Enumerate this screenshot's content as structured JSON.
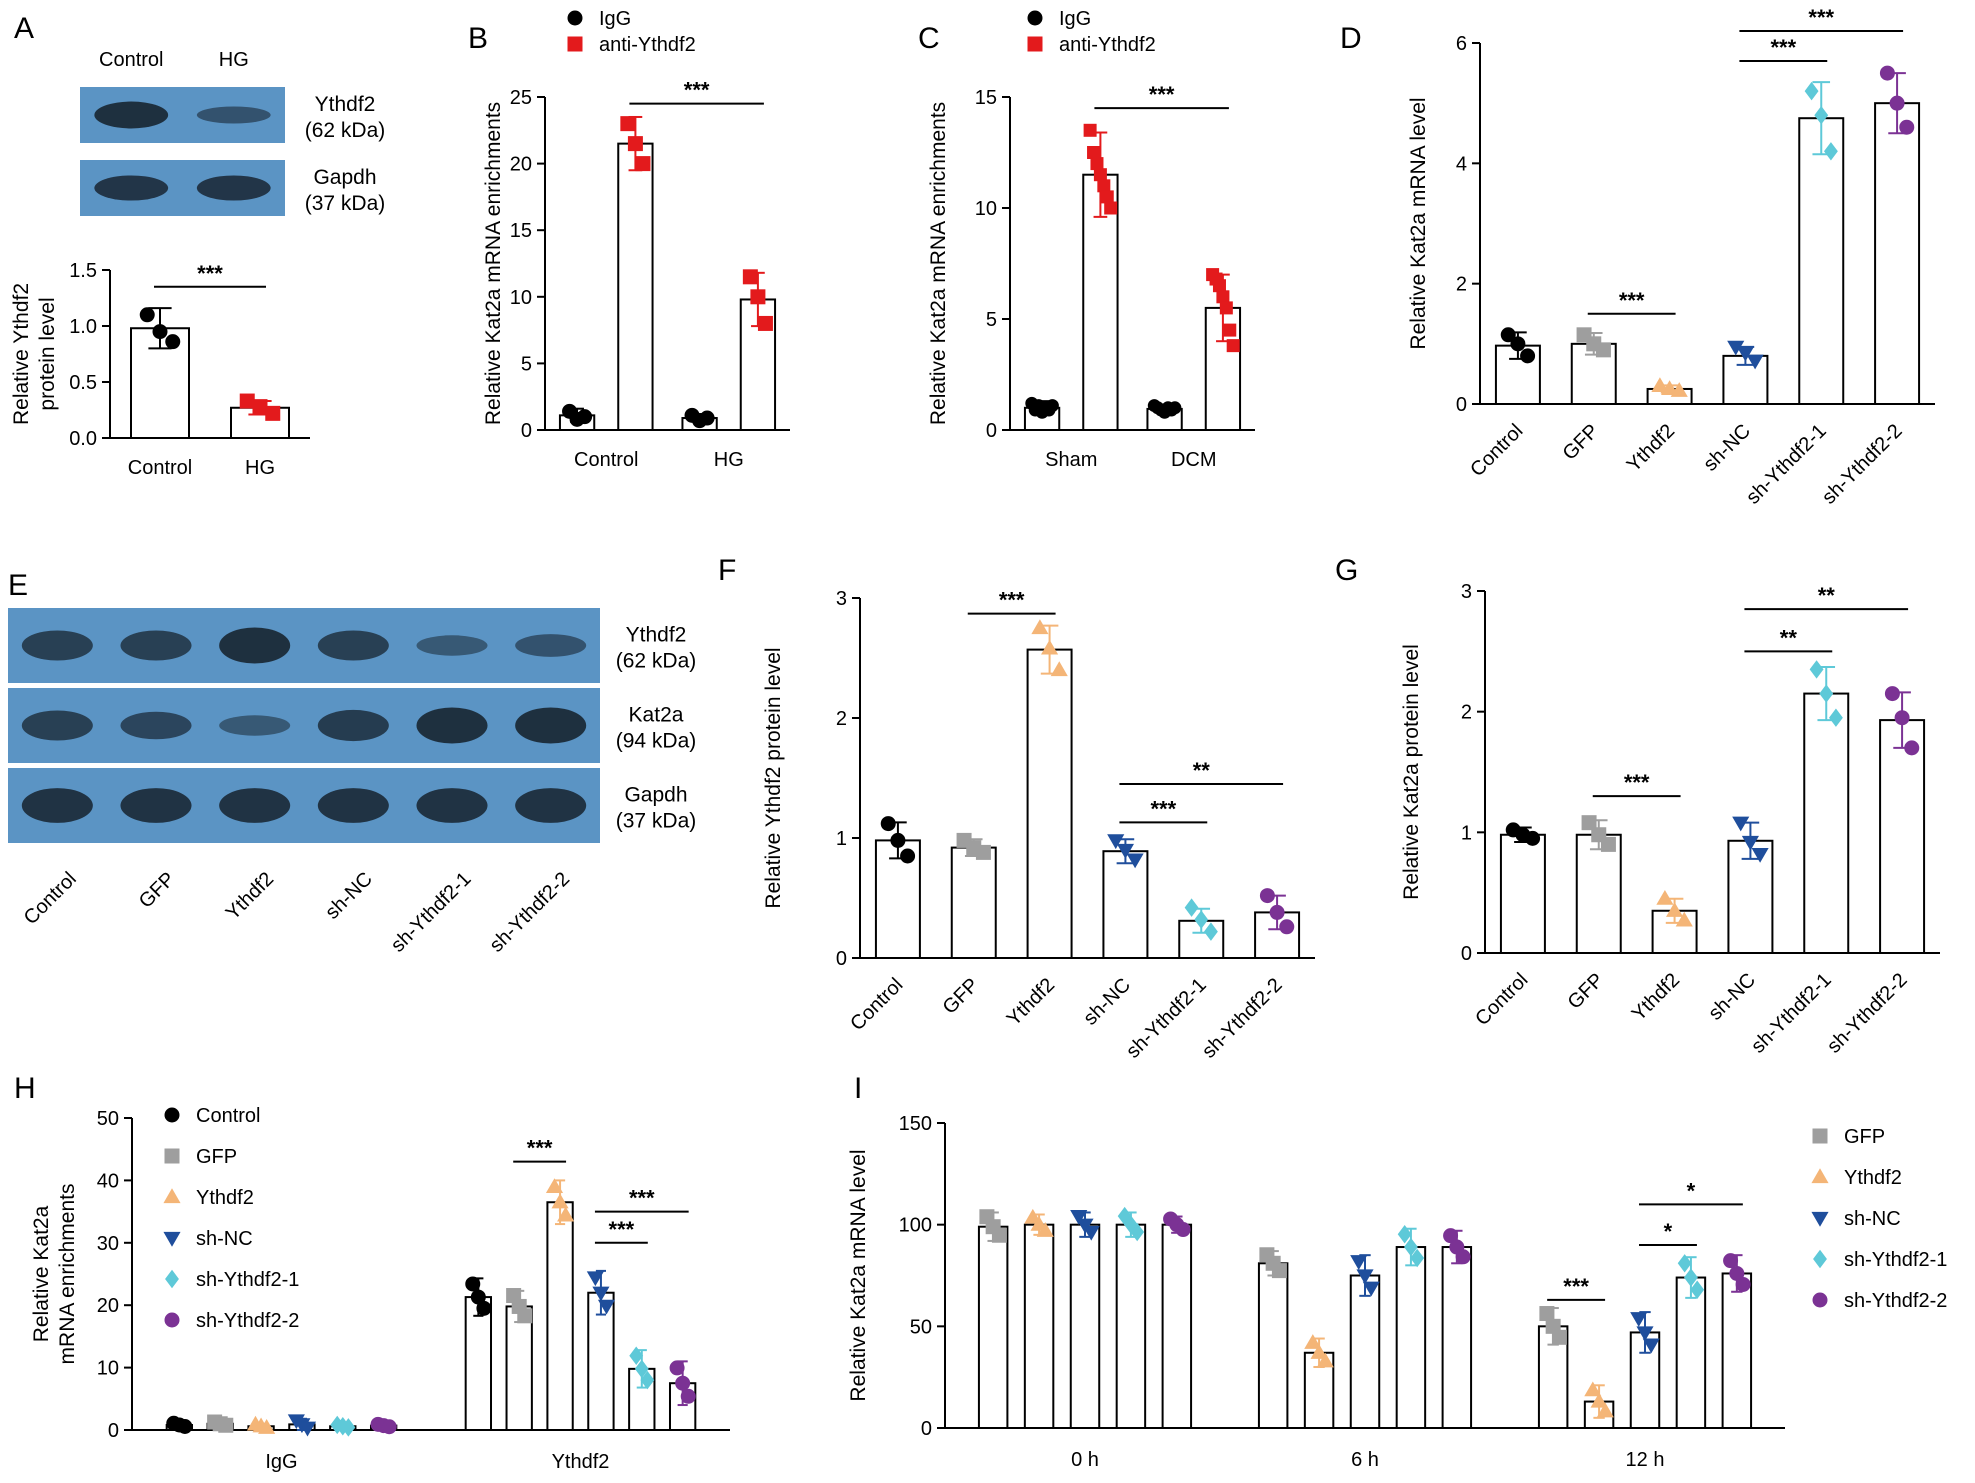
{
  "colors": {
    "IgG": "#000000",
    "anti": "#e31a1c",
    "Control": "#000000",
    "GFP": "#9e9e9e",
    "Ythdf2": "#f4b577",
    "sh-NC": "#1f4e9c",
    "sh-Ythdf2-1": "#5ec9d8",
    "sh-Ythdf2-2": "#7b3294",
    "blot_bg": "#5b94c4",
    "blot_band": "#1b2a38"
  },
  "chart_data": [
    {
      "id": "A",
      "type": "bar",
      "panel_letter": "A",
      "blot": {
        "lanes": [
          "Control",
          "HG"
        ],
        "rows": [
          {
            "name": "Ythdf2",
            "size": "(62 kDa)",
            "band_intensity": [
              1.0,
              0.45
            ]
          },
          {
            "name": "Gapdh",
            "size": "(37 kDa)",
            "band_intensity": [
              0.9,
              0.9
            ]
          }
        ]
      },
      "ylabel_lines": [
        "Relative Ythdf2",
        "protein level"
      ],
      "ylim": [
        0,
        1.5
      ],
      "yticks": [
        "0.0",
        "0.5",
        "1.0",
        "1.5"
      ],
      "categories": [
        "Control",
        "HG"
      ],
      "bars": [
        {
          "category": "Control",
          "value": 0.98,
          "err": 0.18,
          "points": [
            1.1,
            0.95,
            0.86
          ],
          "color": "#ffffff",
          "marker": "circle",
          "marker_color": "#000000"
        },
        {
          "category": "HG",
          "value": 0.27,
          "err": 0.06,
          "points": [
            0.33,
            0.28,
            0.22
          ],
          "color": "#ffffff",
          "marker": "square",
          "marker_color": "#e31a1c"
        }
      ],
      "sig": [
        {
          "label": "***",
          "from": 0,
          "to": 1,
          "y": 1.35
        }
      ]
    },
    {
      "id": "B",
      "type": "bar",
      "panel_letter": "B",
      "legend": [
        {
          "label": "IgG",
          "marker": "circle",
          "color": "#000000"
        },
        {
          "label": "anti-Ythdf2",
          "marker": "square",
          "color": "#e31a1c"
        }
      ],
      "ylabel_lines": [
        "Relative Kat2a mRNA enrichments"
      ],
      "ylim": [
        0,
        25
      ],
      "yticks": [
        "0",
        "5",
        "10",
        "15",
        "20",
        "25"
      ],
      "groups": [
        "Control",
        "HG"
      ],
      "bars": [
        {
          "group": 0,
          "series": "IgG",
          "value": 1.1,
          "err": 0.5,
          "points": [
            1.4,
            0.8,
            1.0
          ],
          "marker": "circle",
          "marker_color": "#000000"
        },
        {
          "group": 0,
          "series": "anti-Ythdf2",
          "value": 21.5,
          "err": 2.0,
          "points": [
            23.0,
            21.5,
            20.0
          ],
          "marker": "square",
          "marker_color": "#e31a1c"
        },
        {
          "group": 1,
          "series": "IgG",
          "value": 0.9,
          "err": 0.3,
          "points": [
            1.1,
            0.7,
            0.9
          ],
          "marker": "circle",
          "marker_color": "#000000"
        },
        {
          "group": 1,
          "series": "anti-Ythdf2",
          "value": 9.8,
          "err": 2.0,
          "points": [
            11.5,
            10.0,
            8.0
          ],
          "marker": "square",
          "marker_color": "#e31a1c"
        }
      ],
      "sig": [
        {
          "label": "***",
          "from_bar": 1,
          "to_bar": 3,
          "y": 24.5
        }
      ]
    },
    {
      "id": "C",
      "type": "bar",
      "panel_letter": "C",
      "legend": [
        {
          "label": "IgG",
          "marker": "circle",
          "color": "#000000"
        },
        {
          "label": "anti-Ythdf2",
          "marker": "square",
          "color": "#e31a1c"
        }
      ],
      "ylabel_lines": [
        "Relative Kat2a mRNA enrichments"
      ],
      "ylim": [
        0,
        15
      ],
      "yticks": [
        "0",
        "5",
        "10",
        "15"
      ],
      "groups": [
        "Sham",
        "DCM"
      ],
      "bars": [
        {
          "group": 0,
          "series": "IgG",
          "value": 1.0,
          "err": 0.3,
          "points": [
            1.2,
            0.9,
            1.1,
            0.8,
            1.0,
            0.9,
            1.1
          ],
          "marker": "circle",
          "marker_color": "#000000"
        },
        {
          "group": 0,
          "series": "anti-Ythdf2",
          "value": 11.5,
          "err": 1.9,
          "points": [
            13.5,
            12.5,
            12.0,
            11.5,
            11.0,
            10.5,
            10.0
          ],
          "marker": "square",
          "marker_color": "#e31a1c"
        },
        {
          "group": 1,
          "series": "IgG",
          "value": 0.95,
          "err": 0.2,
          "points": [
            1.1,
            1.0,
            0.9,
            0.8,
            1.0,
            0.9,
            1.0
          ],
          "marker": "circle",
          "marker_color": "#000000"
        },
        {
          "group": 1,
          "series": "anti-Ythdf2",
          "value": 5.5,
          "err": 1.5,
          "points": [
            7.0,
            6.8,
            6.5,
            6.0,
            5.5,
            4.5,
            3.8
          ],
          "marker": "square",
          "marker_color": "#e31a1c"
        }
      ],
      "sig": [
        {
          "label": "***",
          "from_bar": 1,
          "to_bar": 3,
          "y": 14.5
        }
      ]
    },
    {
      "id": "D",
      "type": "bar",
      "panel_letter": "D",
      "ylabel_lines": [
        "Relative Kat2a mRNA level"
      ],
      "ylim": [
        0,
        6
      ],
      "yticks": [
        "0",
        "2",
        "4",
        "6"
      ],
      "categories": [
        "Control",
        "GFP",
        "Ythdf2",
        "sh-NC",
        "sh-Ythdf2-1",
        "sh-Ythdf2-2"
      ],
      "bars": [
        {
          "category": "Control",
          "value": 0.97,
          "err": 0.22,
          "points": [
            1.15,
            1.0,
            0.8
          ],
          "marker": "circle",
          "marker_color": "#000000"
        },
        {
          "category": "GFP",
          "value": 1.0,
          "err": 0.18,
          "points": [
            1.15,
            1.0,
            0.9
          ],
          "marker": "square",
          "marker_color": "#9e9e9e"
        },
        {
          "category": "Ythdf2",
          "value": 0.25,
          "err": 0.06,
          "points": [
            0.3,
            0.25,
            0.22
          ],
          "marker": "triangle",
          "marker_color": "#f4b577"
        },
        {
          "category": "sh-NC",
          "value": 0.8,
          "err": 0.15,
          "points": [
            0.95,
            0.85,
            0.72
          ],
          "marker": "tri-down",
          "marker_color": "#1f4e9c"
        },
        {
          "category": "sh-Ythdf2-1",
          "value": 4.75,
          "err": 0.6,
          "points": [
            5.2,
            4.8,
            4.2
          ],
          "marker": "diamond",
          "marker_color": "#5ec9d8"
        },
        {
          "category": "sh-Ythdf2-2",
          "value": 5.0,
          "err": 0.5,
          "points": [
            5.5,
            5.0,
            4.6
          ],
          "marker": "circle",
          "marker_color": "#7b3294"
        }
      ],
      "sig": [
        {
          "label": "***",
          "from": 1,
          "to": 2,
          "y": 1.5
        },
        {
          "label": "***",
          "from": 3,
          "to": 4,
          "y": 5.7
        },
        {
          "label": "***",
          "from": 3,
          "to": 5,
          "y": 6.2
        }
      ]
    },
    {
      "id": "F",
      "type": "bar",
      "panel_letter": "F",
      "ylabel_lines": [
        "Relative Ythdf2 protein level"
      ],
      "ylim": [
        0,
        3
      ],
      "yticks": [
        "0",
        "1",
        "2",
        "3"
      ],
      "categories": [
        "Control",
        "GFP",
        "Ythdf2",
        "sh-NC",
        "sh-Ythdf2-1",
        "sh-Ythdf2-2"
      ],
      "bars": [
        {
          "category": "Control",
          "value": 0.98,
          "err": 0.15,
          "points": [
            1.12,
            0.98,
            0.85
          ],
          "marker": "circle",
          "marker_color": "#000000"
        },
        {
          "category": "GFP",
          "value": 0.92,
          "err": 0.07,
          "points": [
            0.98,
            0.92,
            0.88
          ],
          "marker": "square",
          "marker_color": "#9e9e9e"
        },
        {
          "category": "Ythdf2",
          "value": 2.57,
          "err": 0.2,
          "points": [
            2.75,
            2.58,
            2.4
          ],
          "marker": "triangle",
          "marker_color": "#f4b577"
        },
        {
          "category": "sh-NC",
          "value": 0.89,
          "err": 0.1,
          "points": [
            0.98,
            0.9,
            0.82
          ],
          "marker": "tri-down",
          "marker_color": "#1f4e9c"
        },
        {
          "category": "sh-Ythdf2-1",
          "value": 0.31,
          "err": 0.1,
          "points": [
            0.42,
            0.32,
            0.22
          ],
          "marker": "diamond",
          "marker_color": "#5ec9d8"
        },
        {
          "category": "sh-Ythdf2-2",
          "value": 0.38,
          "err": 0.14,
          "points": [
            0.52,
            0.38,
            0.26
          ],
          "marker": "circle",
          "marker_color": "#7b3294"
        }
      ],
      "sig": [
        {
          "label": "***",
          "from": 1,
          "to": 2,
          "y": 2.87
        },
        {
          "label": "***",
          "from": 3,
          "to": 4,
          "y": 1.13
        },
        {
          "label": "**",
          "from": 3,
          "to": 5,
          "y": 1.45
        }
      ]
    },
    {
      "id": "G",
      "type": "bar",
      "panel_letter": "G",
      "ylabel_lines": [
        "Relative Kat2a protein level"
      ],
      "ylim": [
        0,
        3
      ],
      "yticks": [
        "0",
        "1",
        "2",
        "3"
      ],
      "categories": [
        "Control",
        "GFP",
        "Ythdf2",
        "sh-NC",
        "sh-Ythdf2-1",
        "sh-Ythdf2-2"
      ],
      "bars": [
        {
          "category": "Control",
          "value": 0.98,
          "err": 0.06,
          "points": [
            1.02,
            0.98,
            0.95
          ],
          "marker": "circle",
          "marker_color": "#000000"
        },
        {
          "category": "GFP",
          "value": 0.98,
          "err": 0.12,
          "points": [
            1.08,
            0.98,
            0.9
          ],
          "marker": "square",
          "marker_color": "#9e9e9e"
        },
        {
          "category": "Ythdf2",
          "value": 0.35,
          "err": 0.1,
          "points": [
            0.45,
            0.35,
            0.27
          ],
          "marker": "triangle",
          "marker_color": "#f4b577"
        },
        {
          "category": "sh-NC",
          "value": 0.93,
          "err": 0.15,
          "points": [
            1.08,
            0.92,
            0.82
          ],
          "marker": "tri-down",
          "marker_color": "#1f4e9c"
        },
        {
          "category": "sh-Ythdf2-1",
          "value": 2.15,
          "err": 0.22,
          "points": [
            2.35,
            2.15,
            1.95
          ],
          "marker": "diamond",
          "marker_color": "#5ec9d8"
        },
        {
          "category": "sh-Ythdf2-2",
          "value": 1.93,
          "err": 0.23,
          "points": [
            2.15,
            1.95,
            1.7
          ],
          "marker": "circle",
          "marker_color": "#7b3294"
        }
      ],
      "sig": [
        {
          "label": "***",
          "from": 1,
          "to": 2,
          "y": 1.3
        },
        {
          "label": "**",
          "from": 3,
          "to": 4,
          "y": 2.5
        },
        {
          "label": "**",
          "from": 3,
          "to": 5,
          "y": 2.85
        }
      ]
    },
    {
      "id": "H",
      "type": "bar",
      "panel_letter": "H",
      "ylabel_lines": [
        "Relative Kat2a",
        "mRNA enrichments"
      ],
      "ylim": [
        0,
        50
      ],
      "yticks": [
        "0",
        "10",
        "20",
        "30",
        "40",
        "50"
      ],
      "groups": [
        "IgG",
        "Ythdf2"
      ],
      "series": [
        "Control",
        "GFP",
        "Ythdf2",
        "sh-NC",
        "sh-Ythdf2-1",
        "sh-Ythdf2-2"
      ],
      "legend": [
        {
          "label": "Control",
          "marker": "circle",
          "color": "#000000"
        },
        {
          "label": "GFP",
          "marker": "square",
          "color": "#9e9e9e"
        },
        {
          "label": "Ythdf2",
          "marker": "triangle",
          "color": "#f4b577"
        },
        {
          "label": "sh-NC",
          "marker": "tri-down",
          "color": "#1f4e9c"
        },
        {
          "label": "sh-Ythdf2-1",
          "marker": "diamond",
          "color": "#5ec9d8"
        },
        {
          "label": "sh-Ythdf2-2",
          "marker": "circle",
          "color": "#7b3294"
        }
      ],
      "values": [
        [
          0.8,
          1.0,
          0.6,
          0.9,
          0.6,
          0.7
        ],
        [
          21.3,
          19.8,
          36.5,
          22.0,
          9.8,
          7.5
        ]
      ],
      "errors": [
        [
          0.4,
          0.4,
          0.4,
          0.9,
          0.3,
          0.3
        ],
        [
          3.0,
          2.5,
          3.5,
          3.5,
          3.0,
          3.5
        ]
      ],
      "sig": [
        {
          "label": "***",
          "from": [
            1,
            1
          ],
          "to": [
            1,
            2
          ],
          "y": 43
        },
        {
          "label": "***",
          "from": [
            1,
            3
          ],
          "to": [
            1,
            4
          ],
          "y": 30
        },
        {
          "label": "***",
          "from": [
            1,
            3
          ],
          "to": [
            1,
            5
          ],
          "y": 35
        }
      ]
    },
    {
      "id": "I",
      "type": "bar",
      "panel_letter": "I",
      "ylabel_lines": [
        "Relative Kat2a mRNA level"
      ],
      "ylim": [
        0,
        150
      ],
      "yticks": [
        "0",
        "50",
        "100",
        "150"
      ],
      "groups": [
        "0 h",
        "6 h",
        "12 h"
      ],
      "series": [
        "GFP",
        "Ythdf2",
        "sh-NC",
        "sh-Ythdf2-1",
        "sh-Ythdf2-2"
      ],
      "legend": [
        {
          "label": "GFP",
          "marker": "square",
          "color": "#9e9e9e"
        },
        {
          "label": "Ythdf2",
          "marker": "triangle",
          "color": "#f4b577"
        },
        {
          "label": "sh-NC",
          "marker": "tri-down",
          "color": "#1f4e9c"
        },
        {
          "label": "sh-Ythdf2-1",
          "marker": "diamond",
          "color": "#5ec9d8"
        },
        {
          "label": "sh-Ythdf2-2",
          "marker": "circle",
          "color": "#7b3294"
        }
      ],
      "values": [
        [
          99,
          100,
          100,
          100,
          100
        ],
        [
          81,
          37,
          75,
          89,
          89
        ],
        [
          50,
          13,
          47,
          74,
          76
        ]
      ],
      "errors": [
        [
          7,
          5,
          6,
          6,
          4
        ],
        [
          6,
          7,
          10,
          9,
          8
        ],
        [
          9,
          8,
          10,
          10,
          9
        ]
      ],
      "sig": [
        {
          "label": "***",
          "from": [
            2,
            0
          ],
          "to": [
            2,
            1
          ],
          "y": 63
        },
        {
          "label": "*",
          "from": [
            2,
            2
          ],
          "to": [
            2,
            3
          ],
          "y": 90
        },
        {
          "label": "*",
          "from": [
            2,
            2
          ],
          "to": [
            2,
            4
          ],
          "y": 110
        }
      ]
    }
  ],
  "blot_E": {
    "panel_letter": "E",
    "lanes": [
      "Control",
      "GFP",
      "Ythdf2",
      "sh-NC",
      "sh-Ythdf2-1",
      "sh-Ythdf2-2"
    ],
    "rows": [
      {
        "name": "Ythdf2",
        "size": "(62 kDa)",
        "band_intensity": [
          0.75,
          0.75,
          1.0,
          0.75,
          0.35,
          0.45
        ]
      },
      {
        "name": "Kat2a",
        "size": "(94 kDa)",
        "band_intensity": [
          0.75,
          0.65,
          0.35,
          0.8,
          1.0,
          1.0
        ]
      },
      {
        "name": "Gapdh",
        "size": "(37 kDa)",
        "band_intensity": [
          0.95,
          0.95,
          0.95,
          0.95,
          0.95,
          0.95
        ]
      }
    ]
  }
}
